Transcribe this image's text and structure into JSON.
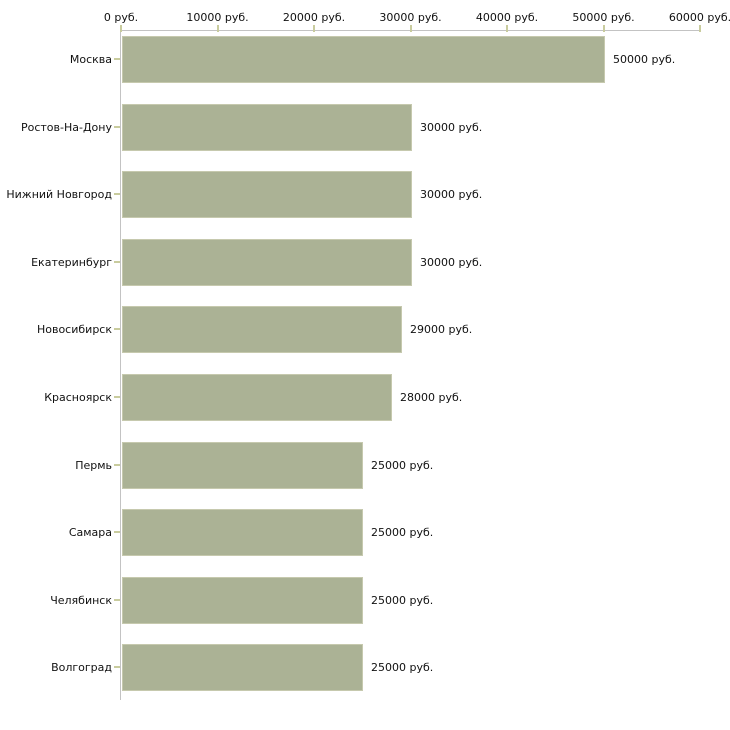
{
  "chart_data": {
    "type": "bar",
    "orientation": "horizontal",
    "title": "",
    "xlabel": "",
    "ylabel": "",
    "unit": "руб.",
    "categories": [
      "Москва",
      "Ростов-На-Дону",
      "Нижний Новгород",
      "Екатеринбург",
      "Новосибирск",
      "Красноярск",
      "Пермь",
      "Самара",
      "Челябинск",
      "Волгоград"
    ],
    "values": [
      50000,
      30000,
      30000,
      30000,
      29000,
      28000,
      25000,
      25000,
      25000,
      25000
    ],
    "bar_labels": [
      "50000 руб.",
      "30000 руб.",
      "30000 руб.",
      "30000 руб.",
      "29000 руб.",
      "28000 руб.",
      "25000 руб.",
      "25000 руб.",
      "25000 руб.",
      "25000 руб."
    ],
    "x_tick_values": [
      0,
      10000,
      20000,
      30000,
      40000,
      50000,
      60000
    ],
    "x_tick_labels": [
      "0 руб.",
      "10000 руб.",
      "20000 руб.",
      "30000 руб.",
      "40000 руб.",
      "50000 руб.",
      "60000 руб."
    ],
    "xlim": [
      0,
      60000
    ],
    "axis_position": "top",
    "grid": false,
    "legend": false,
    "colors": {
      "bar_fill": "#abb295",
      "bar_edge": "#c6c9ae",
      "axis_line": "#c3c3c3",
      "tick_mark": "#c9cc9e",
      "text": "#111111",
      "background": "#ffffff"
    }
  }
}
